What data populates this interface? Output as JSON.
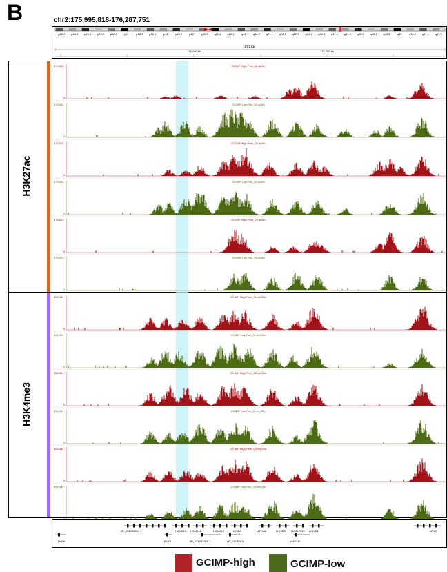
{
  "panel_label": "B",
  "locus": "chr2:175,995,818-176,287,751",
  "ruler": {
    "span_label": "291 kb",
    "tick_labels": [
      "176,100 kb",
      "176,200 kb"
    ]
  },
  "ideogram": {
    "bands": [
      "p25.2",
      "p24.3",
      "p24.1",
      "p23.2",
      "p22.2",
      "p21",
      "p16.3",
      "p16.1",
      "p14",
      "p13.2",
      "p12",
      "p11.2",
      "q11.1",
      "q12.1",
      "q13",
      "q14.2",
      "q21.1",
      "q22.1",
      "q22.3",
      "q24.1",
      "q24.3",
      "q31.1",
      "q31.3",
      "q32.2",
      "q33.1",
      "q33.3",
      "q35",
      "q36.2",
      "q37.1",
      "q37.3"
    ]
  },
  "groups": [
    {
      "name": "H3K27ac",
      "color": "#c86a2e"
    },
    {
      "name": "H3K4me3",
      "color": "#9b6ef0"
    }
  ],
  "tracks": [
    {
      "name": "GCIMP High Prim_01.ac3m",
      "scale_max": "374.403",
      "scale_min": "0",
      "color": "#a3141a",
      "group": "H3K27ac"
    },
    {
      "name": "GCIMP Low Rec_01.ac3m",
      "scale_max": "374.403",
      "scale_min": "0",
      "color": "#4c6b14",
      "group": "H3K27ac"
    },
    {
      "name": "GCIMP High Prim_02.ac3m",
      "scale_max": "374.403",
      "scale_min": "0",
      "color": "#a3141a",
      "group": "H3K27ac"
    },
    {
      "name": "GCIMP Low Rec_02.ac3m",
      "scale_max": "374.403",
      "scale_min": "0",
      "color": "#4c6b14",
      "group": "H3K27ac"
    },
    {
      "name": "GCIMP High Prim_03.ac3m",
      "scale_max": "374.403",
      "scale_min": "0",
      "color": "#a3141a",
      "group": "H3K27ac"
    },
    {
      "name": "GCIMP Low Rec_03.ac3m",
      "scale_max": "374.403",
      "scale_min": "0",
      "color": "#4c6b14",
      "group": "H3K27ac"
    },
    {
      "name": "GCIMP High Prim_01.me33m",
      "scale_max": "456.384",
      "scale_min": "0",
      "color": "#a3141a",
      "group": "H3K4me3"
    },
    {
      "name": "GCIMP Low Rec_01.me33m",
      "scale_max": "456.384",
      "scale_min": "0",
      "color": "#4c6b14",
      "group": "H3K4me3"
    },
    {
      "name": "GCIMP High Prim_02.me33m",
      "scale_max": "456.384",
      "scale_min": "0",
      "color": "#a3141a",
      "group": "H3K4me3"
    },
    {
      "name": "GCIMP Low Rec_02.me33m",
      "scale_max": "456.384",
      "scale_min": "0",
      "color": "#4c6b14",
      "group": "H3K4me3"
    },
    {
      "name": "GCIMP High Prim_03.me33m",
      "scale_max": "456.384",
      "scale_min": "0",
      "color": "#a3141a",
      "group": "H3K4me3"
    },
    {
      "name": "GCIMP Low Rec_03.me33m",
      "scale_max": "456.384",
      "scale_min": "0",
      "color": "#4c6b14",
      "group": "H3K4me3"
    }
  ],
  "genes_top": [
    "IIR_001739224.1",
    "HOXD13",
    "HOXD12",
    "HOXD10",
    "HOXD9",
    "MIR10B",
    "HOXD3",
    "HAGLROS",
    "HOXD1",
    "MTX2"
  ],
  "genes_bottom": [
    "LNPK",
    "EVX2",
    "IIR_024453265.1",
    "IIR_241351.5",
    "HAGLR"
  ],
  "legend": [
    {
      "label": "GCIMP-high",
      "color": "#b22229"
    },
    {
      "label": "GCIMP-low",
      "color": "#4c6b1e"
    }
  ]
}
